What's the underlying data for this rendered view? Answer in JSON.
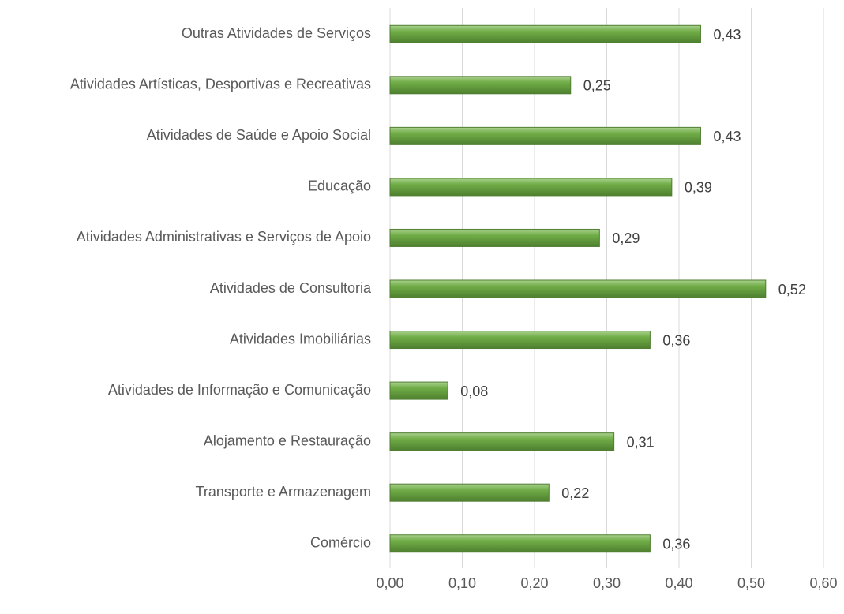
{
  "chart_data": {
    "type": "barh",
    "categories": [
      "Outras Atividades de Serviços",
      "Atividades Artísticas, Desportivas e Recreativas",
      "Atividades de Saúde e Apoio Social",
      "Educação",
      "Atividades Administrativas e Serviços de Apoio",
      "Atividades de Consultoria",
      "Atividades Imobiliárias",
      "Atividades de Informação e Comunicação",
      "Alojamento e Restauração",
      "Transporte e Armazenagem",
      "Comércio"
    ],
    "values": [
      0.43,
      0.25,
      0.43,
      0.39,
      0.29,
      0.52,
      0.36,
      0.08,
      0.31,
      0.22,
      0.36
    ],
    "value_labels": [
      "0,43",
      "0,25",
      "0,43",
      "0,39",
      "0,29",
      "0,52",
      "0,36",
      "0,08",
      "0,31",
      "0,22",
      "0,36"
    ],
    "color": "#70ad47",
    "xlim": [
      0,
      0.6
    ],
    "xticks": [
      {
        "value": 0,
        "label": "0,00"
      },
      {
        "value": 0.1,
        "label": "0,10"
      },
      {
        "value": 0.2,
        "label": "0,20"
      },
      {
        "value": 0.3,
        "label": "0,30"
      },
      {
        "value": 0.4,
        "label": "0,40"
      },
      {
        "value": 0.5,
        "label": "0,50"
      },
      {
        "value": 0.6,
        "label": "0,60"
      }
    ],
    "grid": true
  }
}
